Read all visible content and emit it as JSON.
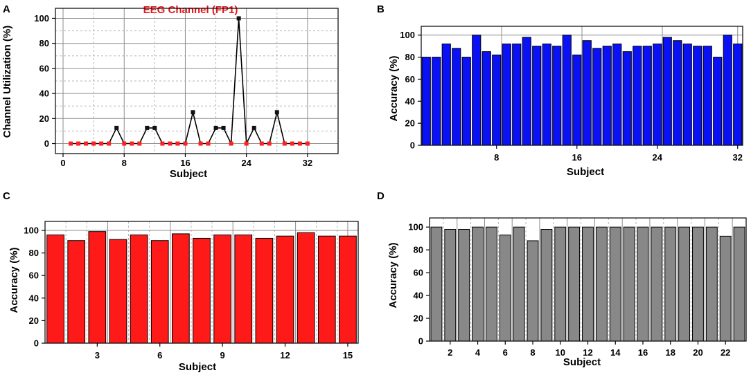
{
  "chart_data": [
    {
      "panel": "A",
      "type": "line",
      "title": "EEG Channel (FP1)",
      "xlabel": "Subject",
      "ylabel": "Channel Utilization (%)",
      "x": [
        1,
        2,
        3,
        4,
        5,
        6,
        7,
        8,
        9,
        10,
        11,
        12,
        13,
        14,
        15,
        16,
        17,
        18,
        19,
        20,
        21,
        22,
        23,
        24,
        25,
        26,
        27,
        28,
        29,
        30,
        31,
        32
      ],
      "values": [
        0,
        0,
        0,
        0,
        0,
        0,
        12.5,
        0,
        0,
        0,
        12.5,
        12.5,
        0,
        0,
        0,
        0,
        25,
        0,
        0,
        12.5,
        12.5,
        0,
        100,
        0,
        12.5,
        0,
        0,
        25,
        0,
        0,
        0,
        0
      ],
      "xlim": [
        -1,
        36
      ],
      "ylim": [
        -8,
        108
      ],
      "xticks": [
        0,
        8,
        16,
        24,
        32
      ],
      "yticks": [
        0,
        20,
        40,
        60,
        80,
        100
      ],
      "colors": {
        "zero_marker": "#ff2020",
        "nonzero_marker": "#111111",
        "line": "#000000",
        "title": "#e8141a"
      }
    },
    {
      "panel": "B",
      "type": "bar",
      "xlabel": "Subject",
      "ylabel": "Accuracy (%)",
      "categories": [
        1,
        2,
        3,
        4,
        5,
        6,
        7,
        8,
        9,
        10,
        11,
        12,
        13,
        14,
        15,
        16,
        17,
        18,
        19,
        20,
        21,
        22,
        23,
        24,
        25,
        26,
        27,
        28,
        29,
        30,
        31,
        32
      ],
      "values": [
        80,
        80,
        92,
        88,
        80,
        100,
        85,
        82,
        92,
        92,
        98,
        90,
        92,
        90,
        100,
        82,
        95,
        88,
        90,
        92,
        85,
        90,
        90,
        92,
        98,
        95,
        92,
        90,
        90,
        80,
        100,
        92
      ],
      "ylim": [
        0,
        108
      ],
      "xticks": [
        8,
        16,
        24,
        32
      ],
      "yticks": [
        0,
        20,
        40,
        60,
        80,
        100
      ],
      "colors": {
        "bar": "#0a12f5"
      }
    },
    {
      "panel": "C",
      "type": "bar",
      "xlabel": "Subject",
      "ylabel": "Accuracy (%)",
      "categories": [
        1,
        2,
        3,
        4,
        5,
        6,
        7,
        8,
        9,
        10,
        11,
        12,
        13,
        14,
        15
      ],
      "values": [
        96,
        91,
        99,
        92,
        96,
        91,
        97,
        93,
        96,
        96,
        93,
        95,
        98,
        95,
        95
      ],
      "ylim": [
        0,
        108
      ],
      "xticks": [
        3,
        6,
        9,
        12,
        15
      ],
      "yticks": [
        0,
        20,
        40,
        60,
        80,
        100
      ],
      "colors": {
        "bar": "#ff1a1a"
      }
    },
    {
      "panel": "D",
      "type": "bar",
      "xlabel": "Subject",
      "ylabel": "Accuracy (%)",
      "categories": [
        1,
        2,
        3,
        4,
        5,
        6,
        7,
        8,
        9,
        10,
        11,
        12,
        13,
        14,
        15,
        16,
        17,
        18,
        19,
        20,
        21,
        22,
        23
      ],
      "values": [
        100,
        98,
        98,
        100,
        100,
        93,
        100,
        88,
        98,
        100,
        100,
        100,
        100,
        100,
        100,
        100,
        100,
        100,
        100,
        100,
        100,
        92,
        100
      ],
      "ylim": [
        0,
        108
      ],
      "xticks": [
        2,
        4,
        6,
        8,
        10,
        12,
        14,
        16,
        18,
        20,
        22
      ],
      "yticks": [
        0,
        20,
        40,
        60,
        80,
        100
      ],
      "colors": {
        "bar": "#888888"
      }
    }
  ]
}
